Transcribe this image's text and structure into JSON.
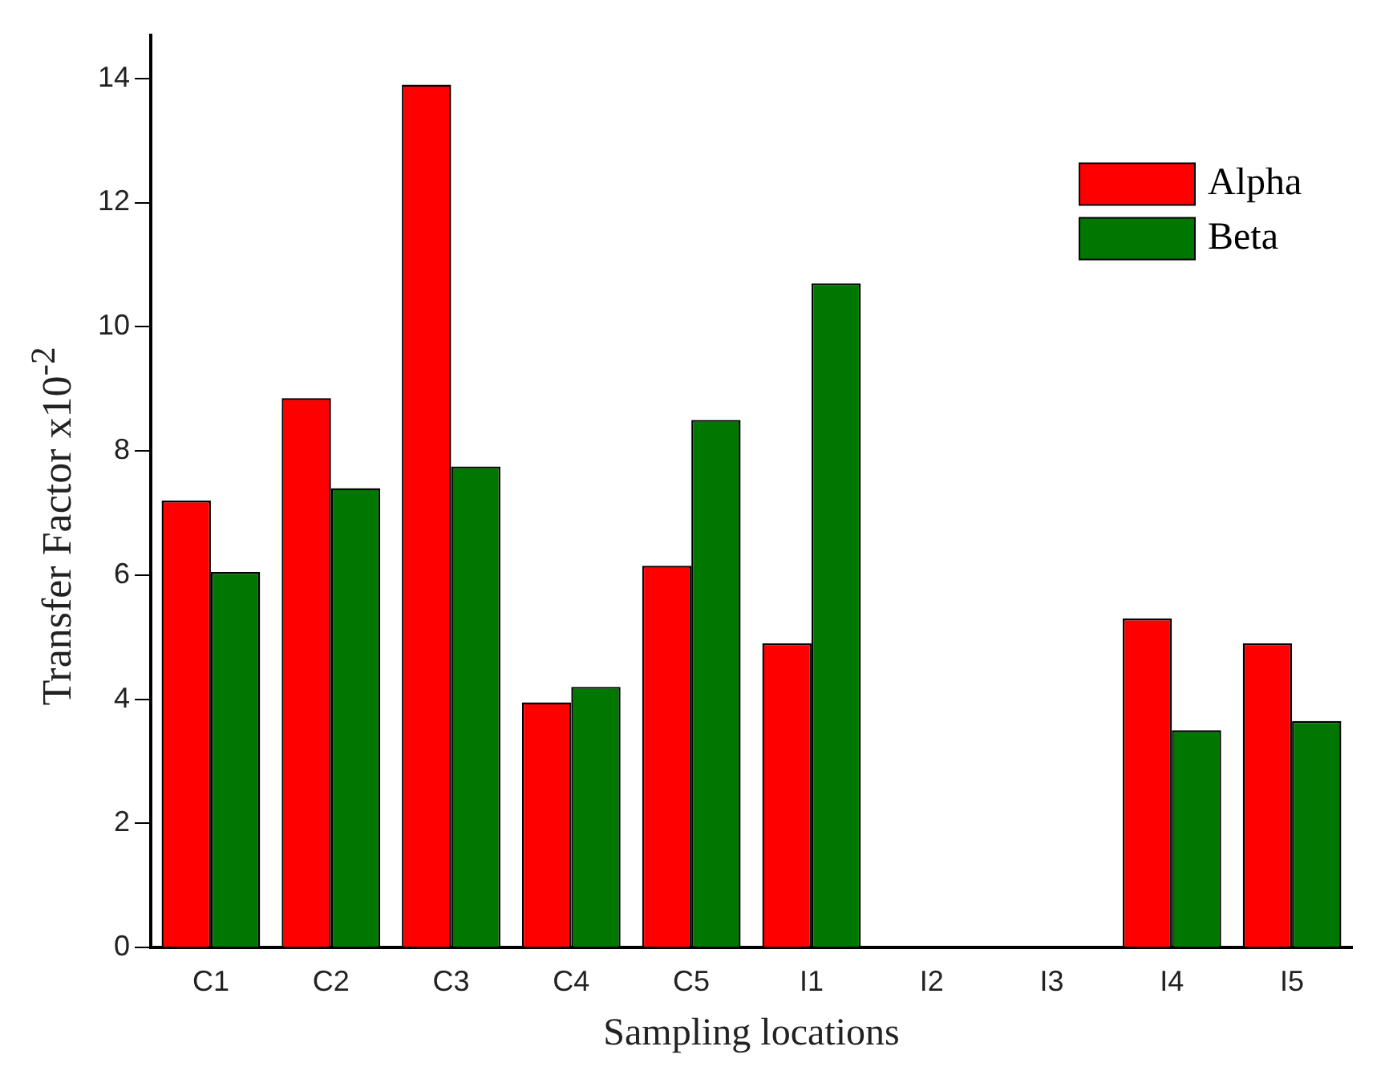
{
  "chart_data": {
    "type": "bar",
    "xlabel": "Sampling locations",
    "ylabel": "Transfer Factor x10$^{-2}$",
    "categories": [
      "C1",
      "C2",
      "C3",
      "C4",
      "C5",
      "I1",
      "I2",
      "I3",
      "I4",
      "I5"
    ],
    "series": [
      {
        "name": "Alpha",
        "color": "#ff0000",
        "values": [
          7.2,
          8.85,
          13.9,
          3.95,
          6.15,
          4.9,
          0,
          0,
          5.3,
          4.9
        ]
      },
      {
        "name": "Beta",
        "color": "#007700",
        "values": [
          6.05,
          7.4,
          7.75,
          4.2,
          8.5,
          10.7,
          0,
          0,
          3.5,
          3.65
        ]
      }
    ],
    "ylim": [
      0,
      14.7
    ],
    "yticks": [
      0,
      2,
      4,
      6,
      8,
      10,
      12,
      14
    ],
    "grid": false,
    "legend": "top right"
  }
}
